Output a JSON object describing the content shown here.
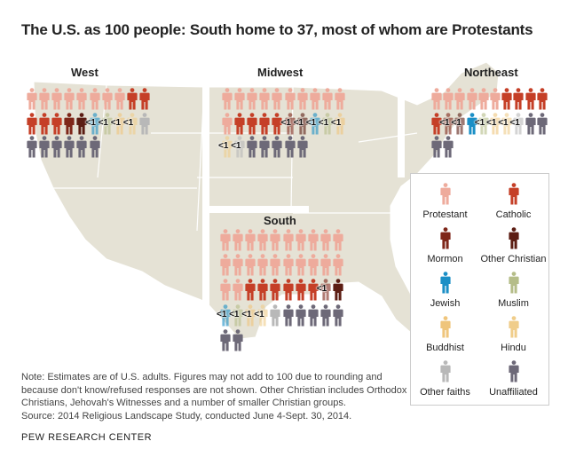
{
  "chart_data": {
    "type": "pictogram",
    "title": "The U.S. as 100 people: South home to 37, most of whom are Protestants",
    "categories": [
      {
        "key": "protestant",
        "name": "Protestant",
        "color": "#eeab9c"
      },
      {
        "key": "catholic",
        "name": "Catholic",
        "color": "#c53f27"
      },
      {
        "key": "mormon",
        "name": "Mormon",
        "color": "#7e2619"
      },
      {
        "key": "other_christian",
        "name": "Other Christian",
        "color": "#5c1d13"
      },
      {
        "key": "jewish",
        "name": "Jewish",
        "color": "#1b8fc6"
      },
      {
        "key": "muslim",
        "name": "Muslim",
        "color": "#b5bd88"
      },
      {
        "key": "buddhist",
        "name": "Buddhist",
        "color": "#efc57c"
      },
      {
        "key": "hindu",
        "name": "Hindu",
        "color": "#f0cd8a"
      },
      {
        "key": "other_faiths",
        "name": "Other faiths",
        "color": "#b8b8b8"
      },
      {
        "key": "unaffiliated",
        "name": "Unaffiliated",
        "color": "#6d6978"
      }
    ],
    "less_than_one_label": "<1",
    "regions": [
      {
        "name": "West",
        "rows": [
          [
            [
              "protestant",
              0
            ],
            [
              "protestant",
              0
            ],
            [
              "protestant",
              0
            ],
            [
              "protestant",
              0
            ],
            [
              "protestant",
              0
            ],
            [
              "protestant",
              0
            ],
            [
              "protestant",
              0
            ],
            [
              "protestant",
              0
            ],
            [
              "catholic",
              0
            ],
            [
              "catholic",
              0
            ]
          ],
          [
            [
              "catholic",
              0
            ],
            [
              "catholic",
              0
            ],
            [
              "catholic",
              0
            ],
            [
              "mormon",
              0
            ],
            [
              "other_christian",
              0
            ],
            [
              "jewish",
              1
            ],
            [
              "muslim",
              1
            ],
            [
              "buddhist",
              1
            ],
            [
              "hindu",
              1
            ],
            [
              "other_faiths",
              0
            ]
          ],
          [
            [
              "unaffiliated",
              0
            ],
            [
              "unaffiliated",
              0
            ],
            [
              "unaffiliated",
              0
            ],
            [
              "unaffiliated",
              0
            ],
            [
              "unaffiliated",
              0
            ],
            [
              "unaffiliated",
              0
            ]
          ]
        ]
      },
      {
        "name": "Midwest",
        "rows": [
          [
            [
              "protestant",
              0
            ],
            [
              "protestant",
              0
            ],
            [
              "protestant",
              0
            ],
            [
              "protestant",
              0
            ],
            [
              "protestant",
              0
            ],
            [
              "protestant",
              0
            ],
            [
              "protestant",
              0
            ],
            [
              "protestant",
              0
            ],
            [
              "protestant",
              0
            ],
            [
              "protestant",
              0
            ]
          ],
          [
            [
              "protestant",
              0
            ],
            [
              "catholic",
              0
            ],
            [
              "catholic",
              0
            ],
            [
              "catholic",
              0
            ],
            [
              "catholic",
              0
            ],
            [
              "mormon",
              1
            ],
            [
              "other_christian",
              1
            ],
            [
              "jewish",
              1
            ],
            [
              "muslim",
              1
            ],
            [
              "buddhist",
              1
            ]
          ],
          [
            [
              "hindu",
              1
            ],
            [
              "other_faiths",
              1
            ],
            [
              "unaffiliated",
              0
            ],
            [
              "unaffiliated",
              0
            ],
            [
              "unaffiliated",
              0
            ],
            [
              "unaffiliated",
              0
            ],
            [
              "unaffiliated",
              0
            ]
          ]
        ]
      },
      {
        "name": "Northeast",
        "rows": [
          [
            [
              "protestant",
              0
            ],
            [
              "protestant",
              0
            ],
            [
              "protestant",
              0
            ],
            [
              "protestant",
              0
            ],
            [
              "protestant",
              0
            ],
            [
              "protestant",
              0
            ],
            [
              "catholic",
              0
            ],
            [
              "catholic",
              0
            ],
            [
              "catholic",
              0
            ],
            [
              "catholic",
              0
            ]
          ],
          [
            [
              "catholic",
              0
            ],
            [
              "mormon",
              1
            ],
            [
              "other_christian",
              1
            ],
            [
              "jewish",
              0
            ],
            [
              "muslim",
              1
            ],
            [
              "buddhist",
              1
            ],
            [
              "hindu",
              1
            ],
            [
              "other_faiths",
              1
            ],
            [
              "unaffiliated",
              0
            ],
            [
              "unaffiliated",
              0
            ]
          ],
          [
            [
              "unaffiliated",
              0
            ],
            [
              "unaffiliated",
              0
            ]
          ]
        ]
      },
      {
        "name": "South",
        "rows": [
          [
            [
              "protestant",
              0
            ],
            [
              "protestant",
              0
            ],
            [
              "protestant",
              0
            ],
            [
              "protestant",
              0
            ],
            [
              "protestant",
              0
            ],
            [
              "protestant",
              0
            ],
            [
              "protestant",
              0
            ],
            [
              "protestant",
              0
            ],
            [
              "protestant",
              0
            ],
            [
              "protestant",
              0
            ]
          ],
          [
            [
              "protestant",
              0
            ],
            [
              "protestant",
              0
            ],
            [
              "protestant",
              0
            ],
            [
              "protestant",
              0
            ],
            [
              "protestant",
              0
            ],
            [
              "protestant",
              0
            ],
            [
              "protestant",
              0
            ],
            [
              "protestant",
              0
            ],
            [
              "protestant",
              0
            ],
            [
              "protestant",
              0
            ]
          ],
          [
            [
              "protestant",
              0
            ],
            [
              "protestant",
              0
            ],
            [
              "catholic",
              0
            ],
            [
              "catholic",
              0
            ],
            [
              "catholic",
              0
            ],
            [
              "catholic",
              0
            ],
            [
              "catholic",
              0
            ],
            [
              "catholic",
              0
            ],
            [
              "mormon",
              1
            ],
            [
              "other_christian",
              0
            ]
          ],
          [
            [
              "jewish",
              1
            ],
            [
              "muslim",
              1
            ],
            [
              "buddhist",
              1
            ],
            [
              "hindu",
              1
            ],
            [
              "other_faiths",
              0
            ],
            [
              "unaffiliated",
              0
            ],
            [
              "unaffiliated",
              0
            ],
            [
              "unaffiliated",
              0
            ],
            [
              "unaffiliated",
              0
            ],
            [
              "unaffiliated",
              0
            ]
          ],
          [
            [
              "unaffiliated",
              0
            ],
            [
              "unaffiliated",
              0
            ]
          ]
        ]
      }
    ]
  },
  "note": "Note: Estimates are of U.S. adults. Figures may not add to 100 due to rounding and because don't know/refused responses are not shown. Other Christian includes Orthodox Christians, Jehovah's Witnesses and a number of smaller Christian groups.",
  "source": "Source: 2014 Religious Landscape Study, conducted June 4-Sept. 30, 2014.",
  "brand": "PEW RESEARCH CENTER"
}
